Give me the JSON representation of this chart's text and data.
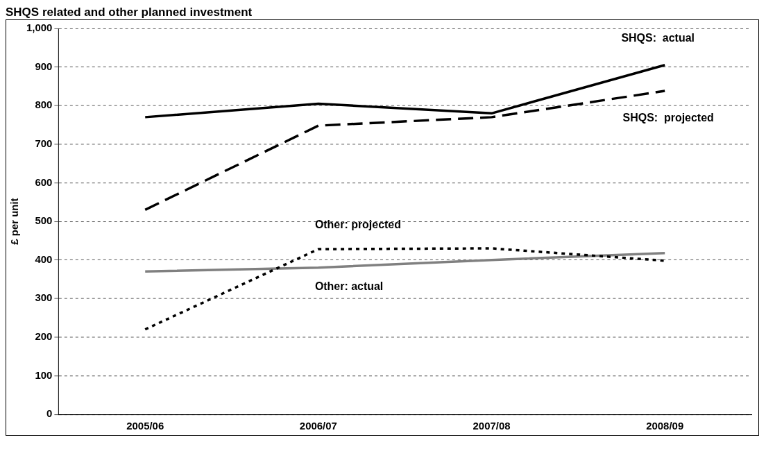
{
  "chart_data": {
    "type": "line",
    "title": "SHQS related and other planned investment",
    "ylabel": "£ per unit",
    "categories": [
      "2005/06",
      "2006/07",
      "2007/08",
      "2008/09"
    ],
    "series": [
      {
        "name": "SHQS:  actual",
        "color": "#000000",
        "line_style": "solid",
        "values": [
          770,
          805,
          780,
          905
        ]
      },
      {
        "name": "SHQS:  projected",
        "color": "#000000",
        "line_style": "dashed",
        "values": [
          530,
          748,
          770,
          838
        ]
      },
      {
        "name": "Other: projected",
        "color": "#000000",
        "line_style": "dotted",
        "values": [
          220,
          428,
          430,
          398
        ]
      },
      {
        "name": "Other: actual",
        "color": "#808080",
        "line_style": "solid",
        "values": [
          370,
          380,
          400,
          418
        ]
      }
    ],
    "ylim": [
      0,
      1000
    ],
    "yticks": [
      0,
      100,
      200,
      300,
      400,
      500,
      600,
      700,
      800,
      900,
      {
        "value": 1000,
        "label": "1,000"
      }
    ],
    "grid": "y",
    "legend": false,
    "marker": "none"
  }
}
